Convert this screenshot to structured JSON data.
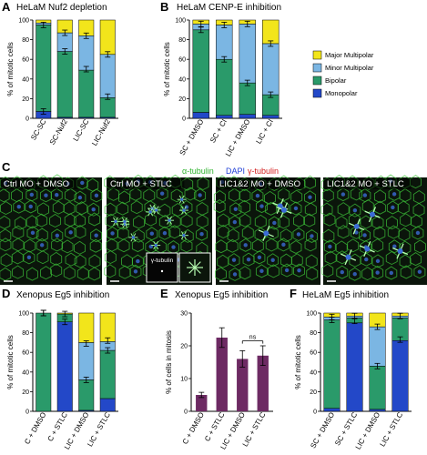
{
  "panel_labels": [
    "A",
    "B",
    "C",
    "D",
    "E",
    "F"
  ],
  "colors": {
    "major_multipolar": "#f2e51b",
    "minor_multipolar": "#7bb6e3",
    "bipolar": "#2a9a6a",
    "monopolar": "#2348c8",
    "mitosis_bar": "#6d2a63",
    "micro_bg": "#0b150b",
    "micro_green": "#3ec43a",
    "micro_blue": "#3b6cd6"
  },
  "legend": {
    "items": [
      "Major Multipolar",
      "Minor Multipolar",
      "Bipolar",
      "Monopolar"
    ]
  },
  "panelC": {
    "stain_labels": [
      "α-tubulin",
      "DAPI",
      "γ-tubulin"
    ],
    "stain_colors": [
      "#2fb32f",
      "#1f3fd6",
      "#d42020"
    ],
    "images": [
      {
        "label": "Ctrl MO + DMSO"
      },
      {
        "label": "Ctrl MO + STLC"
      },
      {
        "label": "LIC1&2 MO + DMSO"
      },
      {
        "label": "LIC1&2 MO + STLC"
      }
    ],
    "inset_label": "γ-tubulin"
  },
  "chart_data": [
    {
      "id": "A",
      "type": "bar",
      "stacked": true,
      "title": "HeLaM Nuf2 depletion",
      "ylabel": "% of mitotic cells",
      "ylim": [
        0,
        100
      ],
      "yticks": [
        0,
        20,
        40,
        60,
        80,
        100
      ],
      "categories": [
        "SC-SC",
        "SC-Nuf2",
        "LIC-SC",
        "LIC-Nuf2"
      ],
      "series": [
        {
          "name": "Monopolar",
          "values": [
            7,
            1,
            1,
            1
          ]
        },
        {
          "name": "Bipolar",
          "values": [
            88,
            67,
            48,
            20
          ]
        },
        {
          "name": "Minor Multipolar",
          "values": [
            2,
            19,
            35,
            44
          ]
        },
        {
          "name": "Major Multipolar",
          "values": [
            3,
            13,
            16,
            35
          ]
        }
      ],
      "error_tops": [
        7,
        68,
        50,
        22
      ],
      "error_tops2": [
        95,
        87,
        84,
        65
      ]
    },
    {
      "id": "B",
      "type": "bar",
      "stacked": true,
      "title": "HeLaM CENP-E inhibition",
      "ylabel": "% of mitotic cells",
      "ylim": [
        0,
        100
      ],
      "yticks": [
        0,
        20,
        40,
        60,
        80,
        100
      ],
      "categories": [
        "SC + DMSO",
        "SC + CI",
        "LIC + DMSO",
        "LIC + CI"
      ],
      "series": [
        {
          "name": "Monopolar",
          "values": [
            6,
            3,
            4,
            3
          ]
        },
        {
          "name": "Bipolar",
          "values": [
            84,
            57,
            32,
            21
          ]
        },
        {
          "name": "Minor Multipolar",
          "values": [
            6,
            35,
            60,
            52
          ]
        },
        {
          "name": "Major Multipolar",
          "values": [
            4,
            5,
            4,
            24
          ]
        }
      ],
      "error_tops": [
        90,
        60,
        36,
        24
      ],
      "error_tops2": [
        96,
        95,
        96,
        76
      ]
    },
    {
      "id": "D",
      "type": "bar",
      "stacked": true,
      "title": "Xenopus Eg5 inhibition",
      "ylabel": "% of mitotic cells",
      "ylim": [
        0,
        100
      ],
      "yticks": [
        0,
        20,
        40,
        60,
        80,
        100
      ],
      "categories": [
        "C + DMSO",
        "C + STLC",
        "LIC + DMSO",
        "LIC + STLC"
      ],
      "series": [
        {
          "name": "Monopolar",
          "values": [
            0,
            91,
            1,
            13
          ]
        },
        {
          "name": "Bipolar",
          "values": [
            100,
            8,
            31,
            49
          ]
        },
        {
          "name": "Minor Multipolar",
          "values": [
            0,
            0,
            38,
            9
          ]
        },
        {
          "name": "Major Multipolar",
          "values": [
            0,
            1,
            30,
            29
          ]
        }
      ],
      "error_tops": [
        100,
        91,
        32,
        62
      ],
      "error_tops2": [
        100,
        99,
        69,
        72
      ]
    },
    {
      "id": "E",
      "type": "bar",
      "stacked": false,
      "title": "Xenopus Eg5 inhibition",
      "ylabel": "% of cells in mitosis",
      "ylim": [
        0,
        30
      ],
      "yticks": [
        0,
        10,
        20,
        30
      ],
      "categories": [
        "C + DMSO",
        "C + STLC",
        "LIC + DMSO",
        "LIC + STLC"
      ],
      "series": [
        {
          "name": "",
          "values": [
            5,
            22.5,
            16,
            17
          ]
        }
      ],
      "errors": [
        0.8,
        3,
        2.5,
        3
      ],
      "annotation": "ns"
    },
    {
      "id": "F",
      "type": "bar",
      "stacked": true,
      "title": "HeLaM Eg5 inhibition",
      "ylabel": "% of mitotic cells",
      "ylim": [
        0,
        100
      ],
      "yticks": [
        0,
        20,
        40,
        60,
        80,
        100
      ],
      "categories": [
        "SC + DMSO",
        "SC + STLC",
        "LIC + DMSO",
        "LIC + STLC"
      ],
      "series": [
        {
          "name": "Monopolar",
          "values": [
            3,
            90,
            2,
            72
          ]
        },
        {
          "name": "Bipolar",
          "values": [
            90,
            5,
            44,
            23
          ]
        },
        {
          "name": "Minor Multipolar",
          "values": [
            3,
            2,
            40,
            2
          ]
        },
        {
          "name": "Major Multipolar",
          "values": [
            4,
            3,
            14,
            3
          ]
        }
      ],
      "error_tops": [
        93,
        92,
        46,
        73
      ],
      "error_tops2": [
        96,
        97,
        86,
        97
      ]
    }
  ]
}
